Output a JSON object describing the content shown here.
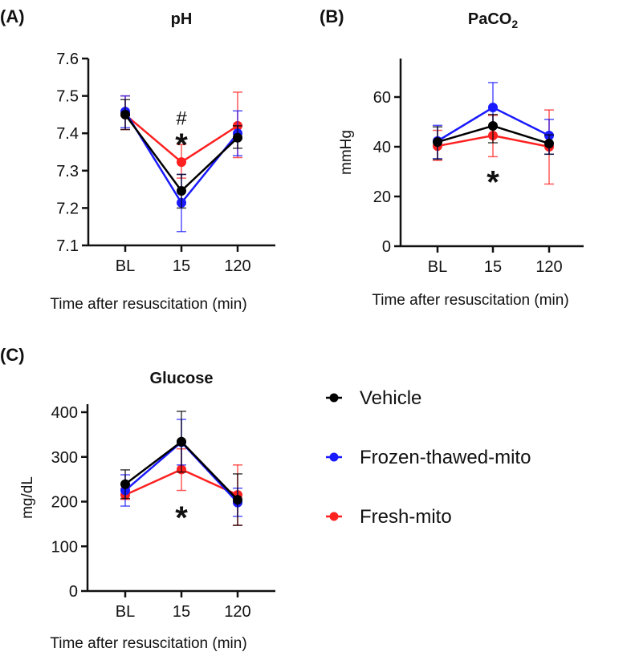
{
  "chart_data": [
    {
      "type": "line",
      "panel_label": "(A)",
      "title": "pH",
      "xlabel": "Time after resuscitation (min)",
      "ylabel": "",
      "categories": [
        "BL",
        "15",
        "120"
      ],
      "ylim": [
        7.1,
        7.6
      ],
      "yticks": [
        "7.1",
        "7.2",
        "7.3",
        "7.4",
        "7.5",
        "7.6"
      ],
      "ytick_values": [
        7.1,
        7.2,
        7.3,
        7.4,
        7.5,
        7.6
      ],
      "series": [
        {
          "name": "Fresh-mito",
          "color": "#ff2020",
          "values": [
            7.45,
            7.323,
            7.42
          ],
          "err_high": [
            7.5,
            7.37,
            7.51
          ],
          "err_low": [
            7.41,
            7.28,
            7.335
          ]
        },
        {
          "name": "Frozen-thawed-mito",
          "color": "#1a1aff",
          "values": [
            7.458,
            7.214,
            7.4
          ],
          "err_high": [
            7.5,
            7.29,
            7.46
          ],
          "err_low": [
            7.415,
            7.137,
            7.34
          ]
        },
        {
          "name": "Vehicle",
          "color": "#000000",
          "values": [
            7.45,
            7.246,
            7.388
          ],
          "err_high": [
            7.49,
            7.29,
            7.42
          ],
          "err_low": [
            7.41,
            7.2,
            7.36
          ]
        }
      ],
      "annotations": [
        {
          "text": "#",
          "category": "15",
          "y": 7.44
        },
        {
          "text": "*",
          "category": "15",
          "y": 7.37
        }
      ]
    },
    {
      "type": "line",
      "panel_label": "(B)",
      "title": "PaCO",
      "title_subscript": "2",
      "xlabel": "Time after resuscitation (min)",
      "ylabel": "mmHg",
      "categories": [
        "BL",
        "15",
        "120"
      ],
      "ylim": [
        0,
        75
      ],
      "yticks": [
        "0",
        "20",
        "40",
        "60"
      ],
      "ytick_values": [
        0,
        20,
        40,
        60
      ],
      "series": [
        {
          "name": "Fresh-mito",
          "color": "#ff2020",
          "values": [
            40.3,
            44.5,
            40
          ],
          "err_high": [
            46.6,
            52.6,
            54.8
          ],
          "err_low": [
            34.5,
            36,
            25
          ]
        },
        {
          "name": "Frozen-thawed-mito",
          "color": "#1a1aff",
          "values": [
            42.3,
            55.8,
            44.5
          ],
          "err_high": [
            48.6,
            65.8,
            51
          ],
          "err_low": [
            35.2,
            48,
            37
          ]
        },
        {
          "name": "Vehicle",
          "color": "#000000",
          "values": [
            41.9,
            48.4,
            41.3
          ],
          "err_high": [
            48,
            53,
            44.8
          ],
          "err_low": [
            35,
            41.6,
            37
          ]
        }
      ],
      "annotations": [
        {
          "text": "*",
          "category": "15",
          "y": 26
        }
      ]
    },
    {
      "type": "line",
      "panel_label": "(C)",
      "title": "Glucose",
      "xlabel": "Time after resuscitation (min)",
      "ylabel": "mg/dL",
      "categories": [
        "BL",
        "15",
        "120"
      ],
      "ylim": [
        0,
        420
      ],
      "yticks": [
        "0",
        "100",
        "200",
        "300",
        "400"
      ],
      "ytick_values": [
        0,
        100,
        200,
        300,
        400
      ],
      "series": [
        {
          "name": "Fresh-mito",
          "color": "#ff2020",
          "values": [
            215,
            272,
            215
          ],
          "err_high": [
            230,
            318,
            282
          ],
          "err_low": [
            205,
            225,
            147
          ]
        },
        {
          "name": "Frozen-thawed-mito",
          "color": "#1a1aff",
          "values": [
            225,
            333,
            198
          ],
          "err_high": [
            260,
            384,
            230
          ],
          "err_low": [
            190,
            282,
            167
          ]
        },
        {
          "name": "Vehicle",
          "color": "#000000",
          "values": [
            239,
            334,
            204
          ],
          "err_high": [
            271,
            402,
            262
          ],
          "err_low": [
            207,
            266,
            147
          ]
        }
      ],
      "annotations": [
        {
          "text": "*",
          "category": "15",
          "y": 165
        }
      ]
    }
  ],
  "legend": {
    "placement": "bottom-right",
    "items": [
      {
        "label": "Vehicle",
        "color": "#000000"
      },
      {
        "label": "Frozen-thawed-mito",
        "color": "#1a1aff"
      },
      {
        "label": "Fresh-mito",
        "color": "#ff2020"
      }
    ]
  }
}
